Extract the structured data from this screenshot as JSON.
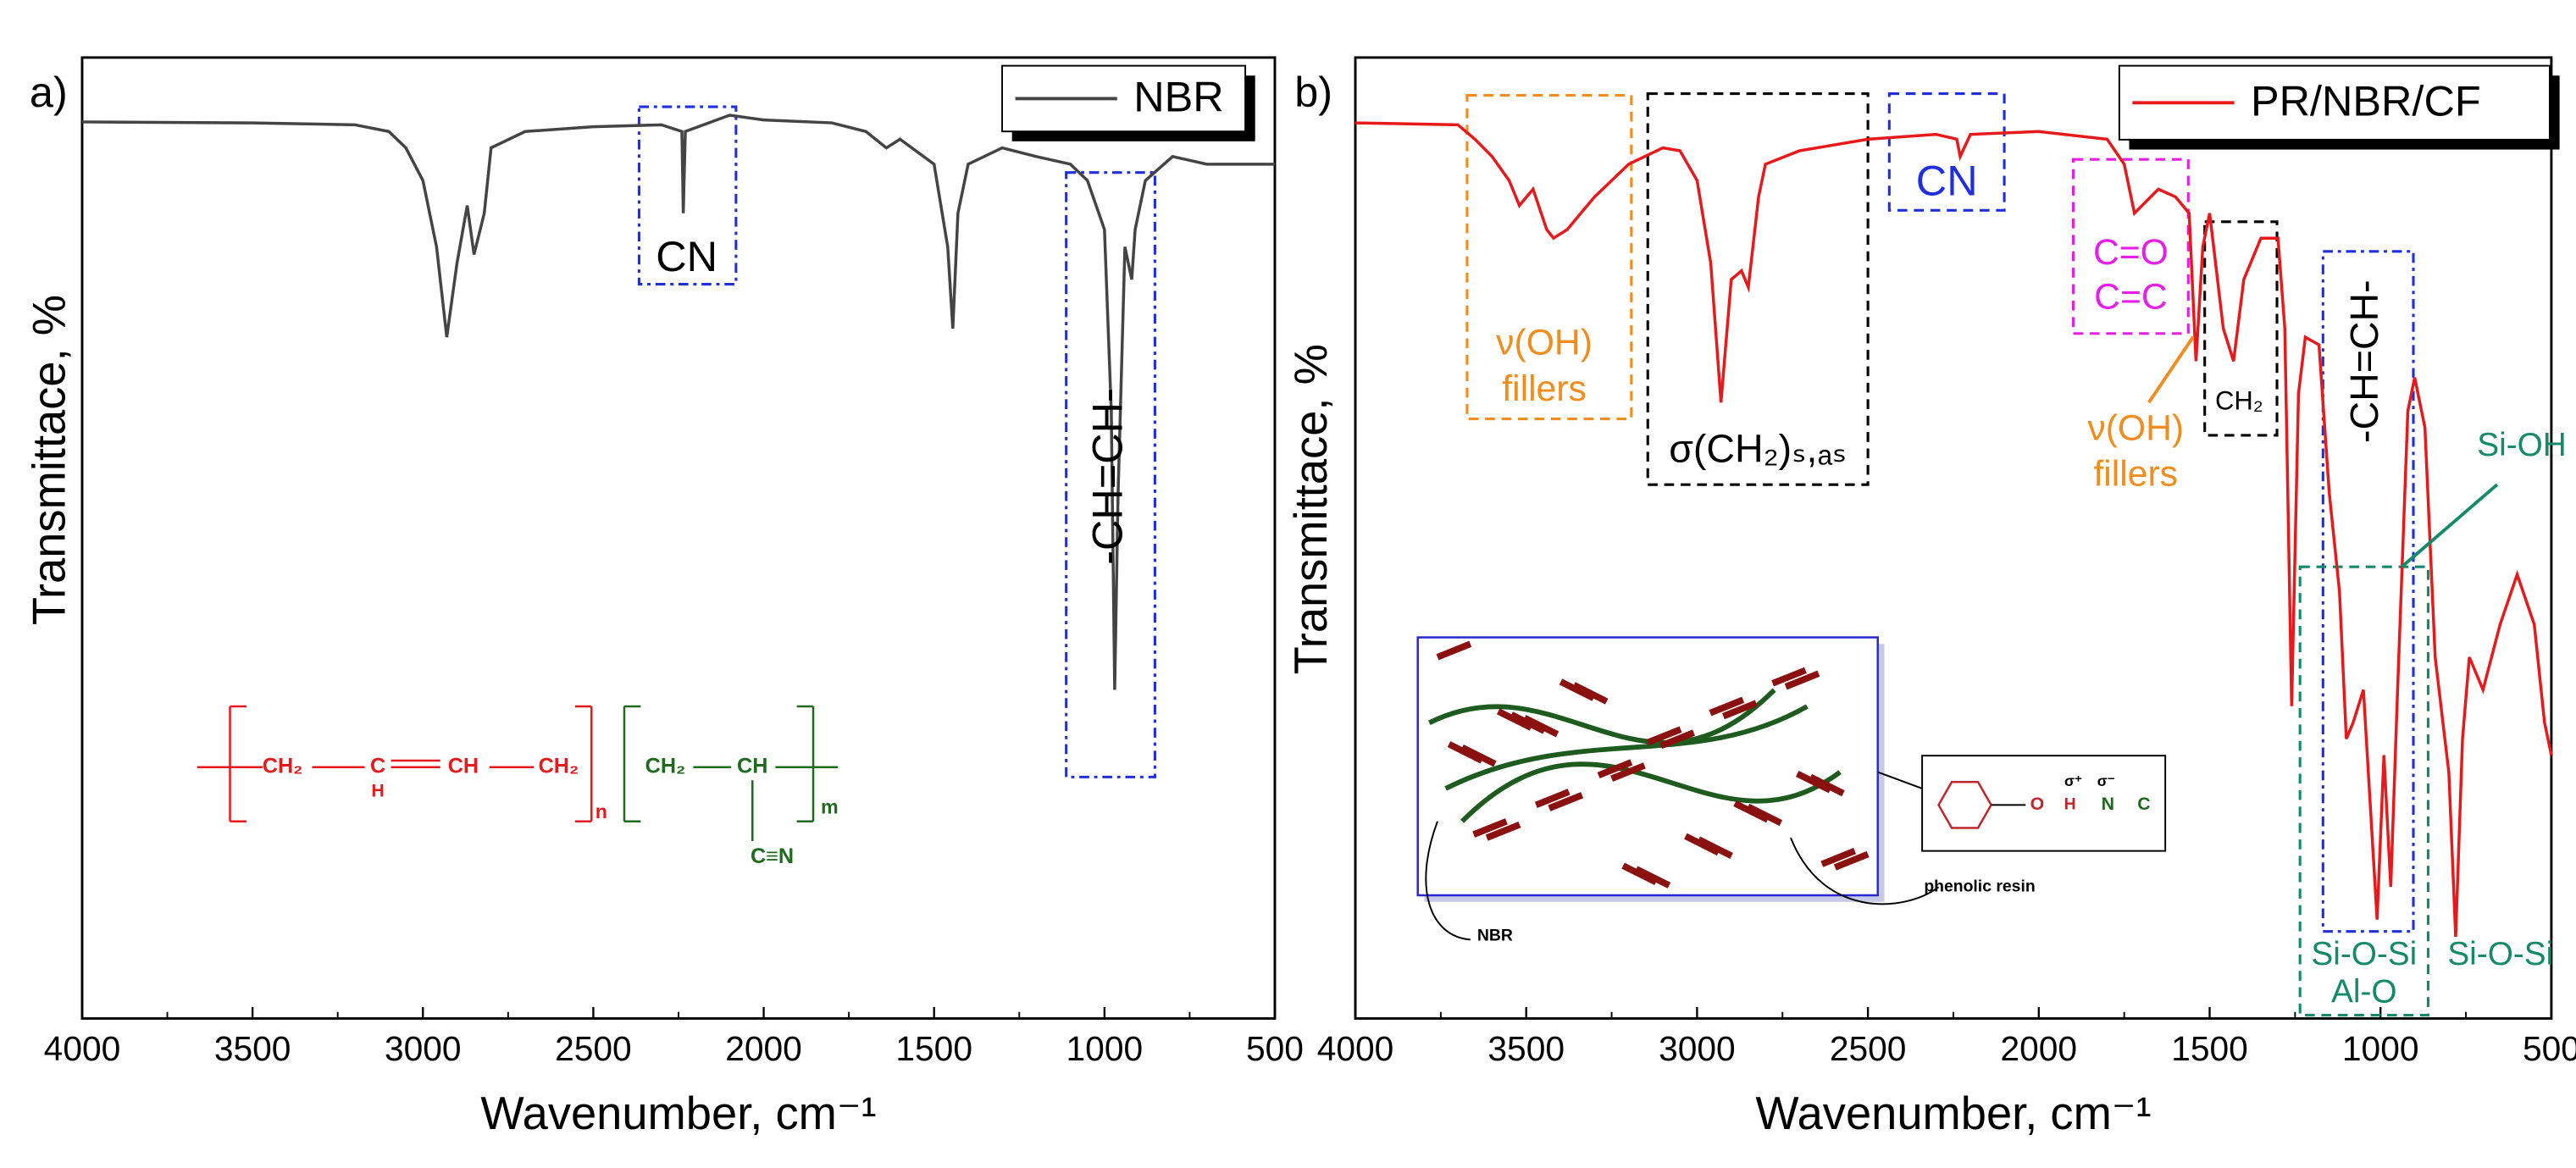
{
  "chart_data": [
    {
      "type": "line",
      "panel_label": "a)",
      "xlabel": "Wavenumber, cm⁻¹",
      "ylabel": "Transmittace, %",
      "xlim": [
        4000,
        500
      ],
      "ylim": [
        0,
        100
      ],
      "xticks": [
        4000,
        3500,
        3000,
        2500,
        2000,
        1500,
        1000,
        500
      ],
      "legend": "upper right",
      "x": [
        4000,
        3500,
        3200,
        3100,
        3050,
        3000,
        2960,
        2930,
        2900,
        2870,
        2850,
        2820,
        2800,
        2700,
        2500,
        2300,
        2240,
        2236,
        2230,
        2100,
        2000,
        1800,
        1700,
        1640,
        1600,
        1500,
        1460,
        1445,
        1430,
        1400,
        1300,
        1200,
        1100,
        1050,
        1000,
        980,
        970,
        960,
        940,
        920,
        910,
        880,
        800,
        700,
        600,
        500
      ],
      "series": [
        {
          "name": "NBR",
          "color": "#444444",
          "values": [
            93.3,
            93.2,
            93.0,
            92.3,
            90.6,
            87.2,
            80.3,
            70.9,
            78.6,
            84.6,
            79.5,
            83.8,
            90.6,
            92.3,
            92.8,
            93.0,
            92.3,
            83.8,
            92.3,
            94.0,
            93.5,
            93.2,
            92.3,
            90.6,
            91.5,
            88.9,
            80.3,
            71.8,
            83.8,
            88.9,
            90.6,
            89.7,
            88.9,
            87.2,
            82.1,
            63.2,
            34.2,
            54.7,
            80.3,
            76.9,
            82.1,
            87.2,
            89.7,
            88.9,
            88.9,
            88.9
          ]
        }
      ],
      "annotations": [
        {
          "text": "CN",
          "color": "#000000"
        },
        {
          "text": "-CH=CH-",
          "color": "#000000"
        }
      ],
      "structure": [
        {
          "text": "CH₂",
          "color": "#e8191b"
        },
        {
          "text": "C",
          "color": "#e8191b"
        },
        {
          "text": "H",
          "color": "#e8191b"
        },
        {
          "text": "CH",
          "color": "#e8191b"
        },
        {
          "text": "CH₂",
          "color": "#e8191b"
        },
        {
          "text": "n",
          "color": "#e8191b"
        },
        {
          "text": "CH₂",
          "color": "#1e6b1e"
        },
        {
          "text": "CH",
          "color": "#1e6b1e"
        },
        {
          "text": "m",
          "color": "#1e6b1e"
        },
        {
          "text": "C≡N",
          "color": "#1e6b1e"
        }
      ]
    },
    {
      "type": "line",
      "panel_label": "b)",
      "xlabel": "Wavenumber, cm⁻¹",
      "ylabel": "Transmittace, %",
      "xlim": [
        4000,
        500
      ],
      "ylim": [
        0,
        100
      ],
      "xticks": [
        4000,
        3500,
        3000,
        2500,
        2000,
        1500,
        1000,
        500
      ],
      "legend": "upper right",
      "x": [
        4000,
        3700,
        3650,
        3600,
        3550,
        3520,
        3480,
        3440,
        3420,
        3380,
        3300,
        3200,
        3100,
        3050,
        3000,
        2960,
        2930,
        2900,
        2870,
        2850,
        2820,
        2800,
        2700,
        2500,
        2300,
        2240,
        2230,
        2200,
        2000,
        1800,
        1750,
        1720,
        1650,
        1600,
        1560,
        1540,
        1520,
        1500,
        1460,
        1430,
        1400,
        1350,
        1300,
        1280,
        1260,
        1240,
        1220,
        1180,
        1150,
        1120,
        1100,
        1080,
        1050,
        1010,
        990,
        970,
        950,
        920,
        900,
        870,
        840,
        800,
        780,
        760,
        740,
        700,
        650,
        600,
        550,
        520,
        500
      ],
      "series": [
        {
          "name": "PR/NBR/CF",
          "color": "#e8191b",
          "values": [
            93.2,
            93.0,
            91.5,
            89.7,
            87.2,
            84.6,
            86.3,
            82.1,
            81.2,
            82.1,
            85.5,
            88.9,
            90.6,
            90.3,
            87.2,
            78.6,
            64.1,
            76.9,
            77.8,
            76.1,
            85.5,
            88.9,
            90.3,
            91.5,
            92.0,
            91.5,
            89.7,
            92.0,
            92.3,
            91.5,
            88.9,
            83.8,
            86.3,
            85.5,
            83.8,
            68.4,
            80.3,
            83.8,
            71.8,
            68.4,
            76.9,
            81.2,
            81.2,
            71.8,
            32.5,
            65.0,
            70.9,
            70.1,
            54.7,
            44.4,
            29.1,
            30.8,
            34.2,
            10.3,
            27.4,
            13.7,
            34.2,
            63.2,
            66.7,
            61.5,
            37.6,
            25.6,
            8.5,
            29.1,
            37.6,
            34.2,
            41.0,
            46.2,
            41.0,
            30.8,
            27.4
          ]
        }
      ],
      "annotations": [
        {
          "text": "ν(OH)",
          "color": "#f28c1c"
        },
        {
          "text": "fillers",
          "color": "#f28c1c"
        },
        {
          "text": "σ(CH₂)ₛ,ₐₛ",
          "color": "#000000"
        },
        {
          "text": "CN",
          "color": "#1f2fe0"
        },
        {
          "text": "C=O",
          "color": "#e61ee6"
        },
        {
          "text": "C=C",
          "color": "#e61ee6"
        },
        {
          "text": "ν(OH)",
          "color": "#f28c1c"
        },
        {
          "text": "fillers",
          "color": "#f28c1c"
        },
        {
          "text": "CH₂",
          "color": "#000000"
        },
        {
          "text": "-CH=CH-",
          "color": "#000000"
        },
        {
          "text": "Si-OH",
          "color": "#138a6a"
        },
        {
          "text": "Si-O-Si",
          "color": "#138a6a"
        },
        {
          "text": "Al-O",
          "color": "#138a6a"
        },
        {
          "text": "Si-O-Si",
          "color": "#138a6a"
        }
      ],
      "structure": [
        {
          "text": "NBR",
          "color": "#000000"
        },
        {
          "text": "phenolic resin",
          "color": "#000000"
        },
        {
          "text": "O",
          "color": "#c0272d"
        },
        {
          "text": "H",
          "color": "#c0272d"
        },
        {
          "text": "N",
          "color": "#1e6b1e"
        },
        {
          "text": "C",
          "color": "#1e6b1e"
        },
        {
          "text": "σ⁺",
          "color": "#000000"
        },
        {
          "text": "σ⁻",
          "color": "#000000"
        }
      ]
    }
  ]
}
